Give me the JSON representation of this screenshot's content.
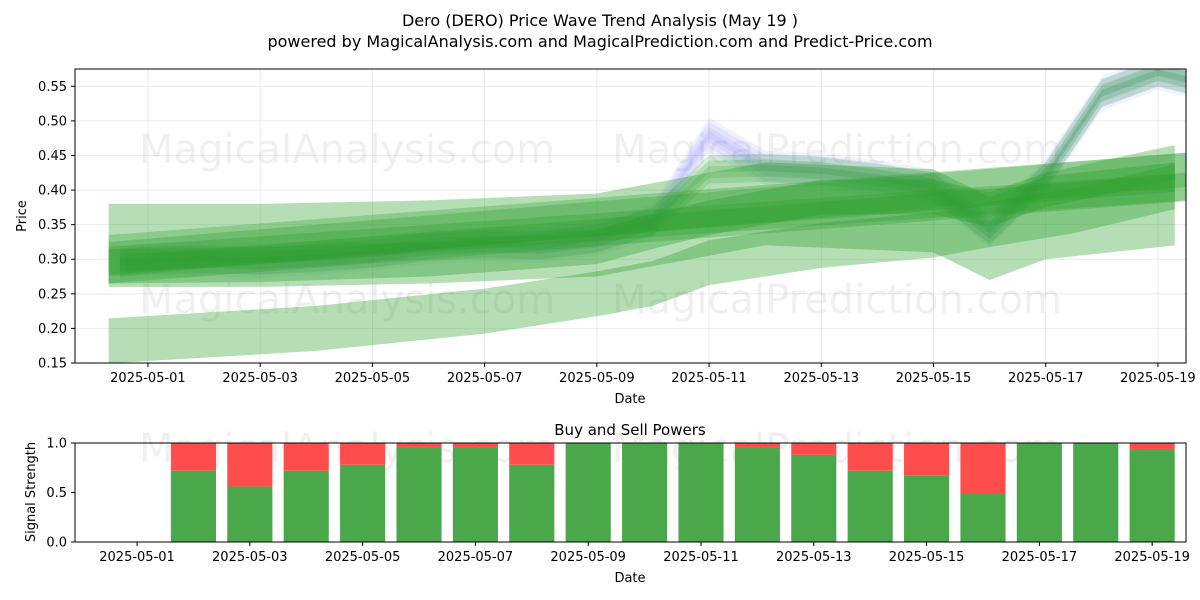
{
  "title_line1": "Dero (DERO) Price Wave Trend Analysis (May 19 )",
  "title_line2": "powered by MagicalAnalysis.com and MagicalPrediction.com and Predict-Price.com",
  "watermark_left": "MagicalAnalysis.com",
  "watermark_right": "MagicalPrediction.com",
  "colors": {
    "green": "#2ca02c",
    "blue": "#6464ff",
    "buy": "#4aa84a",
    "sell": "#ff4c4c"
  },
  "chart_data": [
    {
      "type": "area",
      "title": "",
      "xlabel": "Date",
      "ylabel": "Price",
      "xlim": [
        -0.3,
        19.5
      ],
      "ylim": [
        0.15,
        0.575
      ],
      "grid": true,
      "dates": [
        "2025-04-30",
        "2025-05-01",
        "2025-05-02",
        "2025-05-03",
        "2025-05-04",
        "2025-05-05",
        "2025-05-06",
        "2025-05-07",
        "2025-05-08",
        "2025-05-09",
        "2025-05-10",
        "2025-05-11",
        "2025-05-12",
        "2025-05-13",
        "2025-05-14",
        "2025-05-15",
        "2025-05-16",
        "2025-05-17",
        "2025-05-18",
        "2025-05-19",
        "2025-05-20"
      ],
      "x_ticks": [
        {
          "x": 1,
          "label": "2025-05-01"
        },
        {
          "x": 3,
          "label": "2025-05-03"
        },
        {
          "x": 5,
          "label": "2025-05-05"
        },
        {
          "x": 7,
          "label": "2025-05-07"
        },
        {
          "x": 9,
          "label": "2025-05-09"
        },
        {
          "x": 11,
          "label": "2025-05-11"
        },
        {
          "x": 13,
          "label": "2025-05-13"
        },
        {
          "x": 15,
          "label": "2025-05-15"
        },
        {
          "x": 17,
          "label": "2025-05-17"
        },
        {
          "x": 19,
          "label": "2025-05-19"
        }
      ],
      "y_ticks": [
        {
          "y": 0.15,
          "label": "0.15"
        },
        {
          "y": 0.2,
          "label": "0.20"
        },
        {
          "y": 0.25,
          "label": "0.25"
        },
        {
          "y": 0.3,
          "label": "0.30"
        },
        {
          "y": 0.35,
          "label": "0.35"
        },
        {
          "y": 0.4,
          "label": "0.40"
        },
        {
          "y": 0.45,
          "label": "0.45"
        },
        {
          "y": 0.5,
          "label": "0.50"
        },
        {
          "y": 0.55,
          "label": "0.55"
        }
      ],
      "price_line": {
        "name": "Price",
        "x": [
          0.5,
          1,
          2,
          3,
          4,
          5,
          6,
          7,
          8,
          9,
          10,
          11,
          12,
          13,
          14,
          15,
          16,
          17,
          18,
          19,
          19.5
        ],
        "y": [
          0.295,
          0.298,
          0.3,
          0.298,
          0.302,
          0.308,
          0.318,
          0.322,
          0.32,
          0.33,
          0.355,
          0.48,
          0.432,
          0.428,
          0.418,
          0.405,
          0.342,
          0.42,
          0.54,
          0.57,
          0.56
        ]
      },
      "bands": [
        {
          "x0": 0.3,
          "x1": 19.6,
          "y_start": 0.3,
          "y_end": 0.43,
          "width": 0.05,
          "opacity": 0.3
        },
        {
          "x0": 0.3,
          "x1": 19.5,
          "y_start": 0.298,
          "y_end": 0.405,
          "width": 0.04,
          "opacity": 0.3
        },
        {
          "x0": 0.6,
          "x1": 19.3,
          "y_start": 0.293,
          "y_end": 0.41,
          "width": 0.025,
          "opacity": 0.35
        },
        {
          "x0": 0.3,
          "x1": 19.7,
          "y_start": 0.3,
          "y_end": 0.42,
          "width": 0.07,
          "opacity": 0.3
        }
      ],
      "curved_bands": [
        {
          "x": [
            0.3,
            3,
            6,
            9,
            10,
            12,
            15,
            16,
            17,
            19.3
          ],
          "y": [
            0.32,
            0.32,
            0.325,
            0.335,
            0.35,
            0.38,
            0.37,
            0.33,
            0.36,
            0.38
          ],
          "width": 0.12,
          "opacity": 0.35
        },
        {
          "x": [
            0.3,
            4,
            7,
            9,
            10,
            11,
            13,
            15,
            16,
            17.5,
            19.3
          ],
          "y": [
            0.182,
            0.2,
            0.225,
            0.25,
            0.265,
            0.295,
            0.32,
            0.335,
            0.35,
            0.37,
            0.405
          ],
          "width": 0.065,
          "opacity": 0.35
        },
        {
          "x": [
            0.3,
            3,
            6,
            9,
            10,
            11,
            13,
            15,
            16,
            17,
            19.3
          ],
          "y": [
            0.29,
            0.292,
            0.3,
            0.318,
            0.34,
            0.36,
            0.39,
            0.39,
            0.372,
            0.4,
            0.44
          ],
          "width": 0.05,
          "opacity": 0.35
        }
      ],
      "wave_copies": [
        -0.01,
        -0.004,
        0.004,
        0.01
      ]
    },
    {
      "type": "bar",
      "title": "Buy and Sell Powers",
      "xlabel": "Date",
      "ylabel": "Signal Strength",
      "ylim": [
        0,
        1.0
      ],
      "y_ticks": [
        {
          "y": 0.0,
          "label": "0.0"
        },
        {
          "y": 0.5,
          "label": "0.5"
        },
        {
          "y": 1.0,
          "label": "1.0"
        }
      ],
      "x_ticks": [
        {
          "x": 1,
          "label": "2025-05-01"
        },
        {
          "x": 3,
          "label": "2025-05-03"
        },
        {
          "x": 5,
          "label": "2025-05-05"
        },
        {
          "x": 7,
          "label": "2025-05-07"
        },
        {
          "x": 9,
          "label": "2025-05-09"
        },
        {
          "x": 11,
          "label": "2025-05-11"
        },
        {
          "x": 13,
          "label": "2025-05-13"
        },
        {
          "x": 15,
          "label": "2025-05-15"
        },
        {
          "x": 17,
          "label": "2025-05-17"
        },
        {
          "x": 19,
          "label": "2025-05-19"
        }
      ],
      "x_days": [
        2,
        3,
        4,
        5,
        6,
        7,
        8,
        9,
        10,
        11,
        12,
        13,
        14,
        15,
        16,
        17,
        18,
        19
      ],
      "series": [
        {
          "name": "Buy",
          "values": [
            0.72,
            0.56,
            0.72,
            0.78,
            0.95,
            0.95,
            0.78,
            1.0,
            1.0,
            1.0,
            0.95,
            0.88,
            0.72,
            0.67,
            0.49,
            1.0,
            1.0,
            0.94
          ]
        },
        {
          "name": "Sell",
          "values": [
            0.28,
            0.44,
            0.28,
            0.22,
            0.05,
            0.05,
            0.22,
            0.0,
            0.0,
            0.0,
            0.05,
            0.12,
            0.28,
            0.33,
            0.51,
            0.0,
            0.0,
            0.06
          ]
        }
      ]
    }
  ]
}
